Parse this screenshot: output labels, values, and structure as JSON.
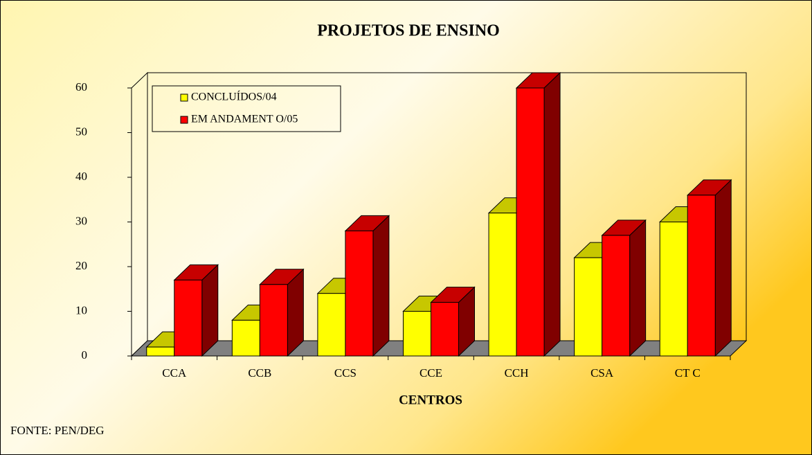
{
  "chart_data": {
    "type": "bar3d",
    "title": "PROJETOS DE ENSINO",
    "xlabel": "CENTROS",
    "source": "FONTE: PEN/DEG",
    "categories": [
      "CCA",
      "CCB",
      "CCS",
      "CCE",
      "CCH",
      "CSA",
      "CT C"
    ],
    "series": [
      {
        "name": "CONCLUÍDOS/04",
        "color": "#ffff00",
        "values": [
          2,
          8,
          14,
          10,
          32,
          22,
          30
        ]
      },
      {
        "name": "EM ANDAMENT O/05",
        "color": "#ff0000",
        "values": [
          17,
          16,
          28,
          12,
          60,
          27,
          36
        ]
      }
    ],
    "ylim": [
      0,
      60
    ],
    "yticks": [
      0,
      10,
      20,
      30,
      40,
      50,
      60
    ],
    "legend": "upper left"
  }
}
